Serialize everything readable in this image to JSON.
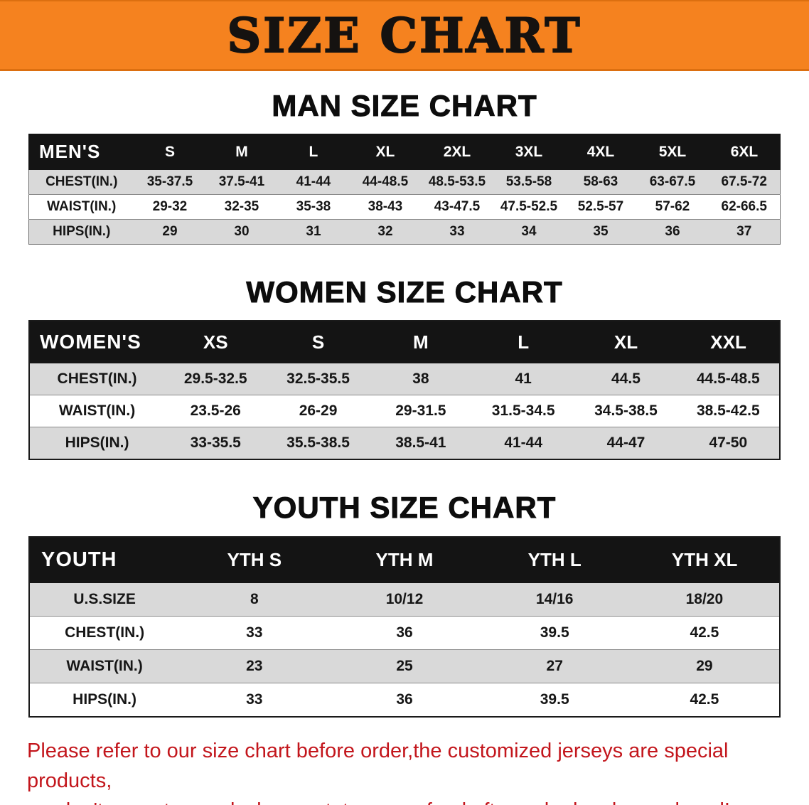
{
  "banner": {
    "title": "SIZE CHART",
    "bg_color": "#F5821F"
  },
  "sections": {
    "men": {
      "heading": "MAN SIZE CHART",
      "table": {
        "header": [
          "MEN'S",
          "S",
          "M",
          "L",
          "XL",
          "2XL",
          "3XL",
          "4XL",
          "5XL",
          "6XL"
        ],
        "rows": [
          [
            "CHEST(IN.)",
            "35-37.5",
            "37.5-41",
            "41-44",
            "44-48.5",
            "48.5-53.5",
            "53.5-58",
            "58-63",
            "63-67.5",
            "67.5-72"
          ],
          [
            "WAIST(IN.)",
            "29-32",
            "32-35",
            "35-38",
            "38-43",
            "43-47.5",
            "47.5-52.5",
            "52.5-57",
            "57-62",
            "62-66.5"
          ],
          [
            "HIPS(IN.)",
            "29",
            "30",
            "31",
            "32",
            "33",
            "34",
            "35",
            "36",
            "37"
          ]
        ]
      }
    },
    "women": {
      "heading": "WOMEN SIZE CHART",
      "table": {
        "header": [
          "WOMEN'S",
          "XS",
          "S",
          "M",
          "L",
          "XL",
          "XXL"
        ],
        "rows": [
          [
            "CHEST(IN.)",
            "29.5-32.5",
            "32.5-35.5",
            "38",
            "41",
            "44.5",
            "44.5-48.5"
          ],
          [
            "WAIST(IN.)",
            "23.5-26",
            "26-29",
            "29-31.5",
            "31.5-34.5",
            "34.5-38.5",
            "38.5-42.5"
          ],
          [
            "HIPS(IN.)",
            "33-35.5",
            "35.5-38.5",
            "38.5-41",
            "41-44",
            "44-47",
            "47-50"
          ]
        ]
      }
    },
    "youth": {
      "heading": "YOUTH SIZE CHART",
      "table": {
        "header": [
          "YOUTH",
          "YTH S",
          "YTH M",
          "YTH L",
          "YTH XL"
        ],
        "rows": [
          [
            "U.S.SIZE",
            "8",
            "10/12",
            "14/16",
            "18/20"
          ],
          [
            "CHEST(IN.)",
            "33",
            "36",
            "39.5",
            "42.5"
          ],
          [
            "WAIST(IN.)",
            "23",
            "25",
            "27",
            "29"
          ],
          [
            "HIPS(IN.)",
            "33",
            "36",
            "39.5",
            "42.5"
          ]
        ]
      }
    }
  },
  "footer": {
    "line1": "Please refer to our size chart before order,the customized jerseys are special products,",
    "line2": "we don't accept cancel, change, teturn or refund after order has been placed!",
    "text_color": "#C3161C"
  }
}
